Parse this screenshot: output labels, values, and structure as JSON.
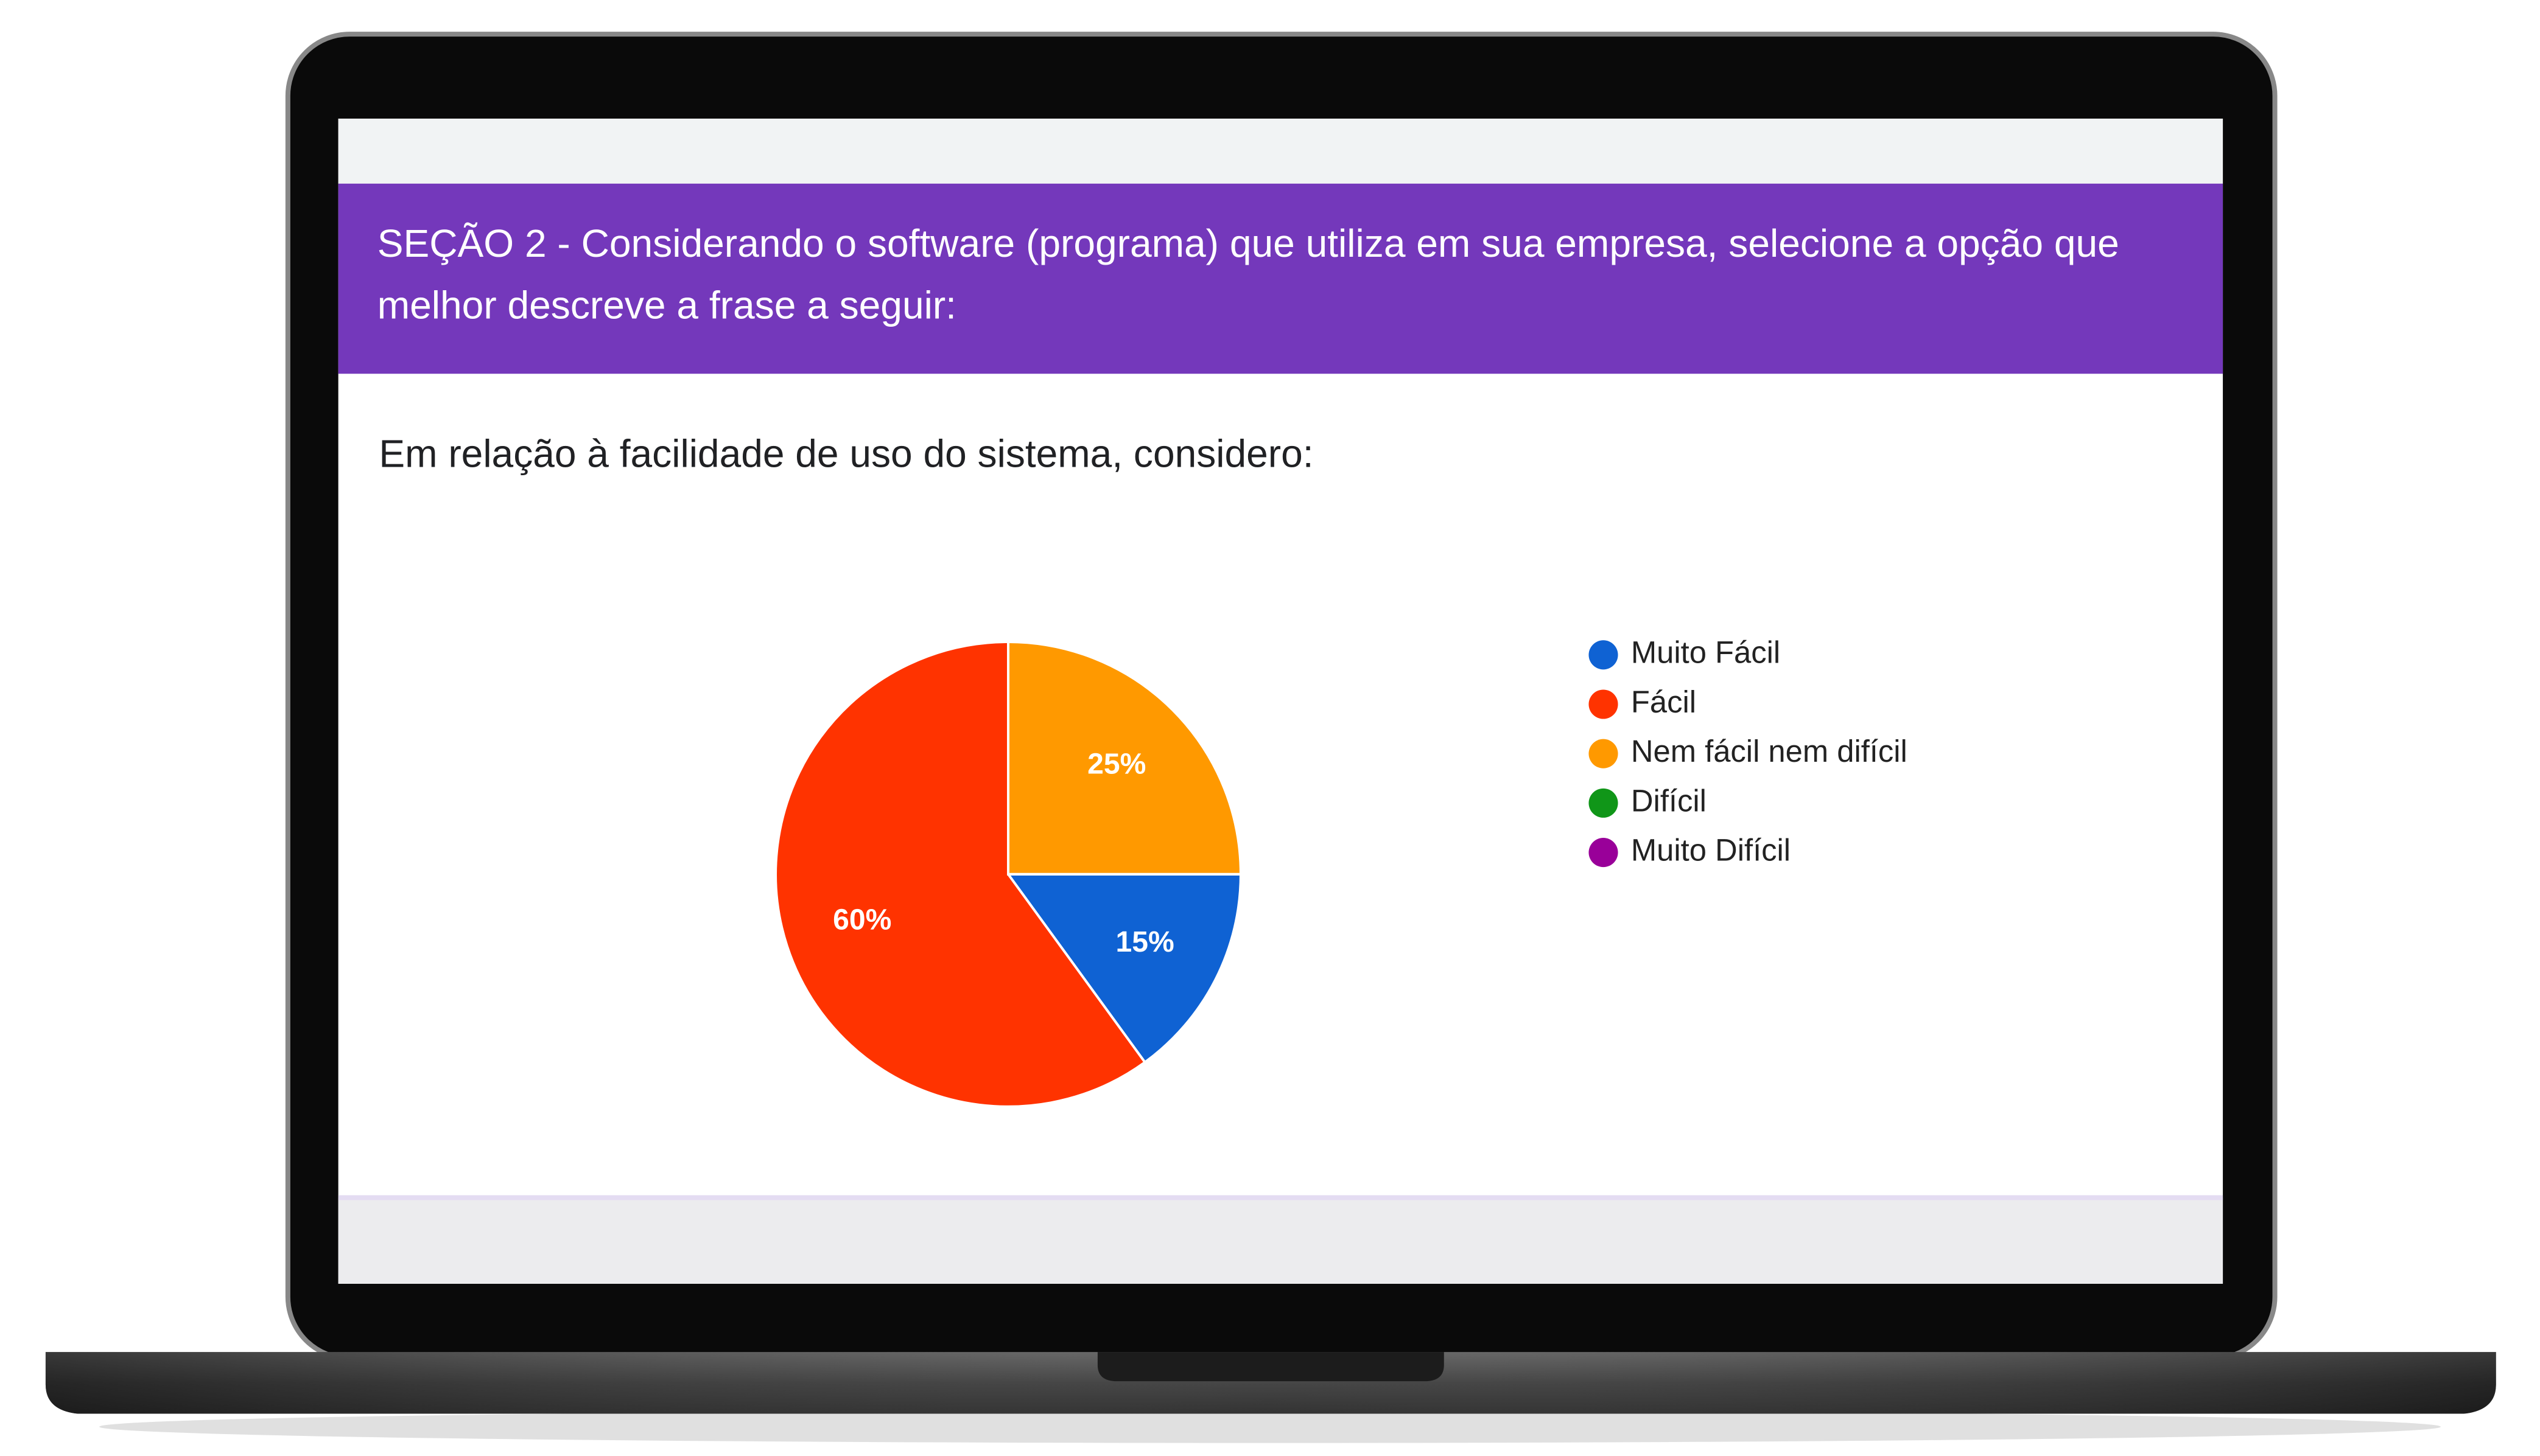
{
  "section": {
    "title": "SEÇÃO 2 - Considerando o software (programa) que utiliza em sua empresa, selecione a opção que melhor descreve a frase a seguir:"
  },
  "chart_data": {
    "type": "pie",
    "title": "Em relação à facilidade de uso do sistema, considero:",
    "categories": [
      "Muito Fácil",
      "Fácil",
      "Nem fácil nem difícil",
      "Difícil",
      "Muito Difícil"
    ],
    "values": [
      15,
      60,
      25,
      0,
      0
    ],
    "value_labels": [
      "15%",
      "60%",
      "25%",
      null,
      null
    ],
    "colors": [
      "#0f62d3",
      "#ff3300",
      "#ff9900",
      "#109618",
      "#990099"
    ],
    "legend": "right"
  }
}
